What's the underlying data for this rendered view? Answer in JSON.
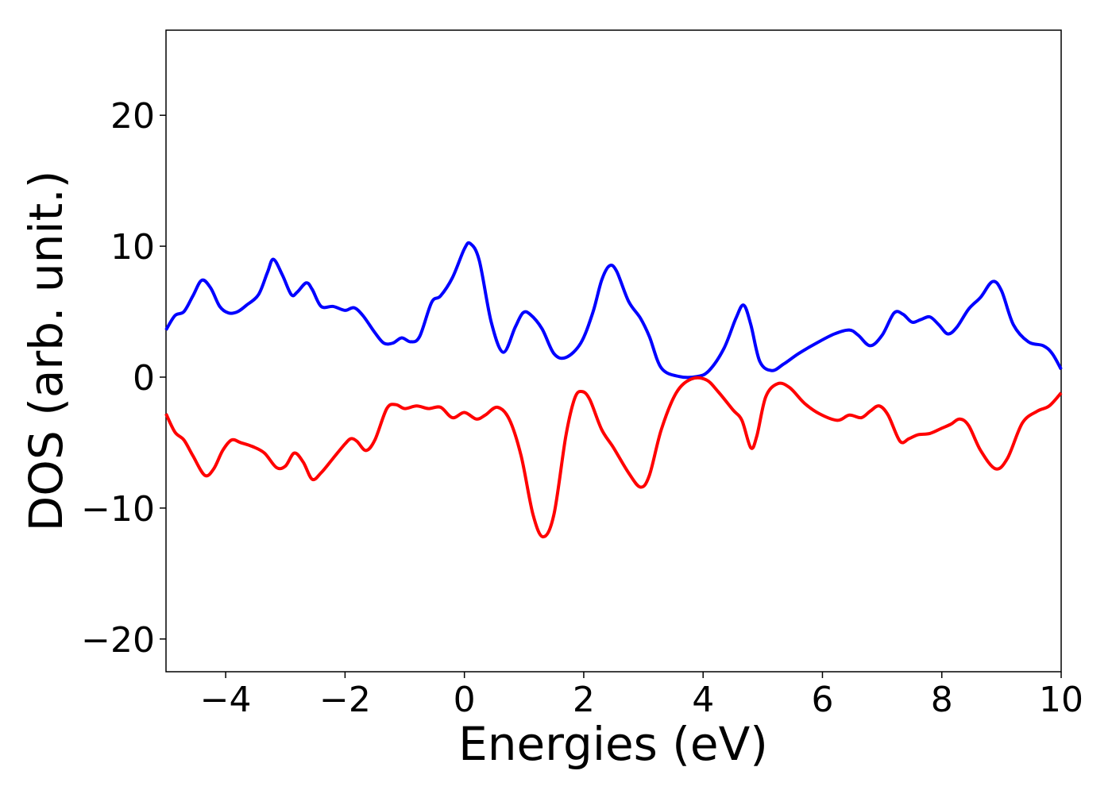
{
  "chart_data": {
    "type": "line",
    "title": "",
    "xlabel": "Energies (eV)",
    "ylabel": "DOS (arb. unit.)",
    "xlim": [
      -5,
      10
    ],
    "ylim": [
      -22.5,
      26.5
    ],
    "xticks": [
      -4,
      -2,
      0,
      2,
      4,
      6,
      8,
      10
    ],
    "yticks": [
      -20,
      -10,
      0,
      10,
      20
    ],
    "xtick_labels": [
      "−4",
      "−2",
      "0",
      "2",
      "4",
      "6",
      "8",
      "10"
    ],
    "ytick_labels": [
      "−20",
      "−10",
      "0",
      "10",
      "20"
    ],
    "grid": false,
    "legend": "none",
    "series": [
      {
        "color": "#0000ff",
        "points": [
          [
            -5.0,
            3.6
          ],
          [
            -4.85,
            4.7
          ],
          [
            -4.7,
            5.0
          ],
          [
            -4.55,
            6.2
          ],
          [
            -4.4,
            7.4
          ],
          [
            -4.25,
            6.8
          ],
          [
            -4.1,
            5.4
          ],
          [
            -3.95,
            4.9
          ],
          [
            -3.8,
            5.0
          ],
          [
            -3.65,
            5.5
          ],
          [
            -3.45,
            6.3
          ],
          [
            -3.3,
            8.0
          ],
          [
            -3.2,
            9.0
          ],
          [
            -3.05,
            7.8
          ],
          [
            -2.9,
            6.3
          ],
          [
            -2.8,
            6.5
          ],
          [
            -2.65,
            7.2
          ],
          [
            -2.55,
            6.7
          ],
          [
            -2.4,
            5.4
          ],
          [
            -2.2,
            5.4
          ],
          [
            -2.0,
            5.1
          ],
          [
            -1.85,
            5.3
          ],
          [
            -1.7,
            4.7
          ],
          [
            -1.5,
            3.4
          ],
          [
            -1.35,
            2.6
          ],
          [
            -1.2,
            2.6
          ],
          [
            -1.05,
            3.0
          ],
          [
            -0.9,
            2.7
          ],
          [
            -0.75,
            3.1
          ],
          [
            -0.55,
            5.7
          ],
          [
            -0.4,
            6.2
          ],
          [
            -0.2,
            7.6
          ],
          [
            0.0,
            9.8
          ],
          [
            0.1,
            10.2
          ],
          [
            0.25,
            8.9
          ],
          [
            0.45,
            4.2
          ],
          [
            0.65,
            1.9
          ],
          [
            0.85,
            3.8
          ],
          [
            0.98,
            4.9
          ],
          [
            1.1,
            4.8
          ],
          [
            1.3,
            3.7
          ],
          [
            1.5,
            1.8
          ],
          [
            1.7,
            1.5
          ],
          [
            1.95,
            2.6
          ],
          [
            2.15,
            4.9
          ],
          [
            2.3,
            7.4
          ],
          [
            2.43,
            8.5
          ],
          [
            2.55,
            8.1
          ],
          [
            2.75,
            5.8
          ],
          [
            2.95,
            4.5
          ],
          [
            3.1,
            3.1
          ],
          [
            3.3,
            0.7
          ],
          [
            3.6,
            0.05
          ],
          [
            3.9,
            0.05
          ],
          [
            4.1,
            0.5
          ],
          [
            4.35,
            2.2
          ],
          [
            4.55,
            4.5
          ],
          [
            4.68,
            5.5
          ],
          [
            4.8,
            4.0
          ],
          [
            4.95,
            1.2
          ],
          [
            5.15,
            0.5
          ],
          [
            5.35,
            1.0
          ],
          [
            5.6,
            1.8
          ],
          [
            5.9,
            2.6
          ],
          [
            6.2,
            3.3
          ],
          [
            6.45,
            3.6
          ],
          [
            6.6,
            3.2
          ],
          [
            6.8,
            2.4
          ],
          [
            7.0,
            3.2
          ],
          [
            7.2,
            4.9
          ],
          [
            7.35,
            4.8
          ],
          [
            7.5,
            4.2
          ],
          [
            7.65,
            4.4
          ],
          [
            7.8,
            4.6
          ],
          [
            7.95,
            4.0
          ],
          [
            8.1,
            3.3
          ],
          [
            8.25,
            3.8
          ],
          [
            8.45,
            5.2
          ],
          [
            8.65,
            6.1
          ],
          [
            8.85,
            7.3
          ],
          [
            9.0,
            6.6
          ],
          [
            9.2,
            4.0
          ],
          [
            9.45,
            2.7
          ],
          [
            9.7,
            2.4
          ],
          [
            9.85,
            1.8
          ],
          [
            10.0,
            0.6
          ]
        ]
      },
      {
        "color": "#ff0000",
        "points": [
          [
            -5.0,
            -2.8
          ],
          [
            -4.85,
            -4.2
          ],
          [
            -4.7,
            -4.8
          ],
          [
            -4.55,
            -6.0
          ],
          [
            -4.35,
            -7.5
          ],
          [
            -4.2,
            -7.0
          ],
          [
            -4.05,
            -5.6
          ],
          [
            -3.9,
            -4.8
          ],
          [
            -3.75,
            -5.0
          ],
          [
            -3.55,
            -5.3
          ],
          [
            -3.35,
            -5.8
          ],
          [
            -3.15,
            -6.9
          ],
          [
            -3.0,
            -6.8
          ],
          [
            -2.85,
            -5.8
          ],
          [
            -2.7,
            -6.5
          ],
          [
            -2.55,
            -7.8
          ],
          [
            -2.4,
            -7.3
          ],
          [
            -2.2,
            -6.2
          ],
          [
            -2.0,
            -5.1
          ],
          [
            -1.9,
            -4.7
          ],
          [
            -1.8,
            -4.9
          ],
          [
            -1.65,
            -5.6
          ],
          [
            -1.5,
            -4.8
          ],
          [
            -1.3,
            -2.4
          ],
          [
            -1.15,
            -2.1
          ],
          [
            -1.0,
            -2.4
          ],
          [
            -0.8,
            -2.2
          ],
          [
            -0.6,
            -2.4
          ],
          [
            -0.4,
            -2.3
          ],
          [
            -0.2,
            -3.1
          ],
          [
            0.0,
            -2.7
          ],
          [
            0.2,
            -3.2
          ],
          [
            0.35,
            -2.9
          ],
          [
            0.55,
            -2.3
          ],
          [
            0.75,
            -3.2
          ],
          [
            0.95,
            -6.0
          ],
          [
            1.15,
            -10.5
          ],
          [
            1.32,
            -12.2
          ],
          [
            1.5,
            -10.5
          ],
          [
            1.7,
            -4.5
          ],
          [
            1.85,
            -1.6
          ],
          [
            1.97,
            -1.1
          ],
          [
            2.1,
            -1.7
          ],
          [
            2.3,
            -4.0
          ],
          [
            2.5,
            -5.4
          ],
          [
            2.75,
            -7.3
          ],
          [
            2.95,
            -8.4
          ],
          [
            3.1,
            -7.5
          ],
          [
            3.3,
            -4.0
          ],
          [
            3.55,
            -1.2
          ],
          [
            3.8,
            -0.15
          ],
          [
            4.05,
            -0.2
          ],
          [
            4.25,
            -1.1
          ],
          [
            4.5,
            -2.5
          ],
          [
            4.65,
            -3.3
          ],
          [
            4.8,
            -5.4
          ],
          [
            4.9,
            -4.5
          ],
          [
            5.05,
            -1.5
          ],
          [
            5.25,
            -0.5
          ],
          [
            5.45,
            -0.8
          ],
          [
            5.7,
            -2.0
          ],
          [
            5.95,
            -2.8
          ],
          [
            6.25,
            -3.3
          ],
          [
            6.45,
            -2.9
          ],
          [
            6.65,
            -3.1
          ],
          [
            6.8,
            -2.6
          ],
          [
            6.95,
            -2.2
          ],
          [
            7.1,
            -2.9
          ],
          [
            7.3,
            -4.9
          ],
          [
            7.45,
            -4.7
          ],
          [
            7.6,
            -4.4
          ],
          [
            7.8,
            -4.3
          ],
          [
            8.0,
            -3.9
          ],
          [
            8.15,
            -3.6
          ],
          [
            8.3,
            -3.2
          ],
          [
            8.45,
            -3.7
          ],
          [
            8.65,
            -5.6
          ],
          [
            8.9,
            -7.0
          ],
          [
            9.1,
            -6.2
          ],
          [
            9.35,
            -3.5
          ],
          [
            9.6,
            -2.6
          ],
          [
            9.8,
            -2.2
          ],
          [
            10.0,
            -1.2
          ]
        ]
      }
    ]
  }
}
